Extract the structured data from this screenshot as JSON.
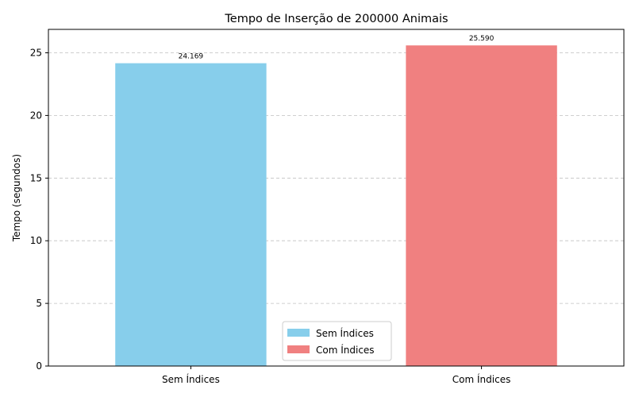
{
  "chart_data": {
    "type": "bar",
    "title": "Tempo de Inserção de 200000 Animais",
    "xlabel": "",
    "ylabel": "Tempo (segundos)",
    "categories": [
      "Sem Índices",
      "Com Índices"
    ],
    "values": [
      24.169,
      25.59
    ],
    "data_labels": [
      "24.169",
      "25.590"
    ],
    "colors": [
      "#87CEEB",
      "#F08080"
    ],
    "ylim": [
      0,
      26.87
    ],
    "yticks": [
      0,
      5,
      10,
      15,
      20,
      25
    ],
    "ytick_labels": [
      "0",
      "5",
      "10",
      "15",
      "20",
      "25"
    ],
    "grid": "y-dashed",
    "legend": {
      "placement": "lower-center",
      "entries": [
        "Sem Índices",
        "Com Índices"
      ]
    }
  }
}
